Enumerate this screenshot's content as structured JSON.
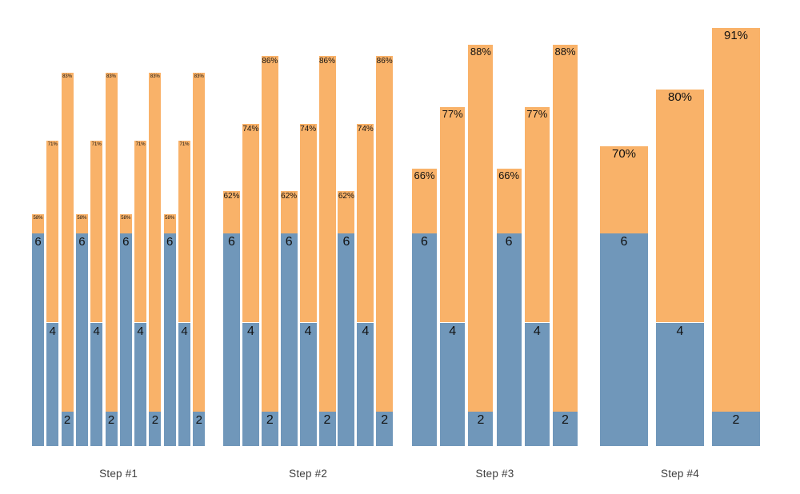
{
  "chart_data": {
    "type": "bar",
    "title": "",
    "xlabel": "",
    "ylabel": "",
    "legend": null,
    "grid": false,
    "axes_visible": false,
    "description": "Stacked bars: blue base segment labeled with its value (6, 4 or 2) and an orange extension whose top is labeled with a total percentage. Each step group repeats the same triplet pattern.",
    "colors": {
      "blue_segment": "#7097BA",
      "orange_segment": "#F9B269",
      "value_label_text": "#111111",
      "group_label_text": "#3f3f3f",
      "background": "#ffffff"
    },
    "percent_scale": [
      0,
      100
    ],
    "groups": [
      {
        "label": "Step #1",
        "repeats": 4,
        "bars": [
          {
            "value": 6,
            "percent_label": "58%",
            "percent": 58
          },
          {
            "value": 4,
            "percent_label": "71%",
            "percent": 71
          },
          {
            "value": 2,
            "percent_label": "83%",
            "percent": 83
          }
        ]
      },
      {
        "label": "Step #2",
        "repeats": 3,
        "bars": [
          {
            "value": 6,
            "percent_label": "62%",
            "percent": 62
          },
          {
            "value": 4,
            "percent_label": "74%",
            "percent": 74
          },
          {
            "value": 2,
            "percent_label": "86%",
            "percent": 86
          }
        ]
      },
      {
        "label": "Step #3",
        "repeats": 2,
        "bars": [
          {
            "value": 6,
            "percent_label": "66%",
            "percent": 66
          },
          {
            "value": 4,
            "percent_label": "77%",
            "percent": 77
          },
          {
            "value": 2,
            "percent_label": "88%",
            "percent": 88
          }
        ]
      },
      {
        "label": "Step #4",
        "repeats": 1,
        "bars": [
          {
            "value": 6,
            "percent_label": "70%",
            "percent": 70
          },
          {
            "value": 4,
            "percent_label": "80%",
            "percent": 80
          },
          {
            "value": 2,
            "percent_label": "91%",
            "percent": 91
          }
        ]
      }
    ]
  }
}
